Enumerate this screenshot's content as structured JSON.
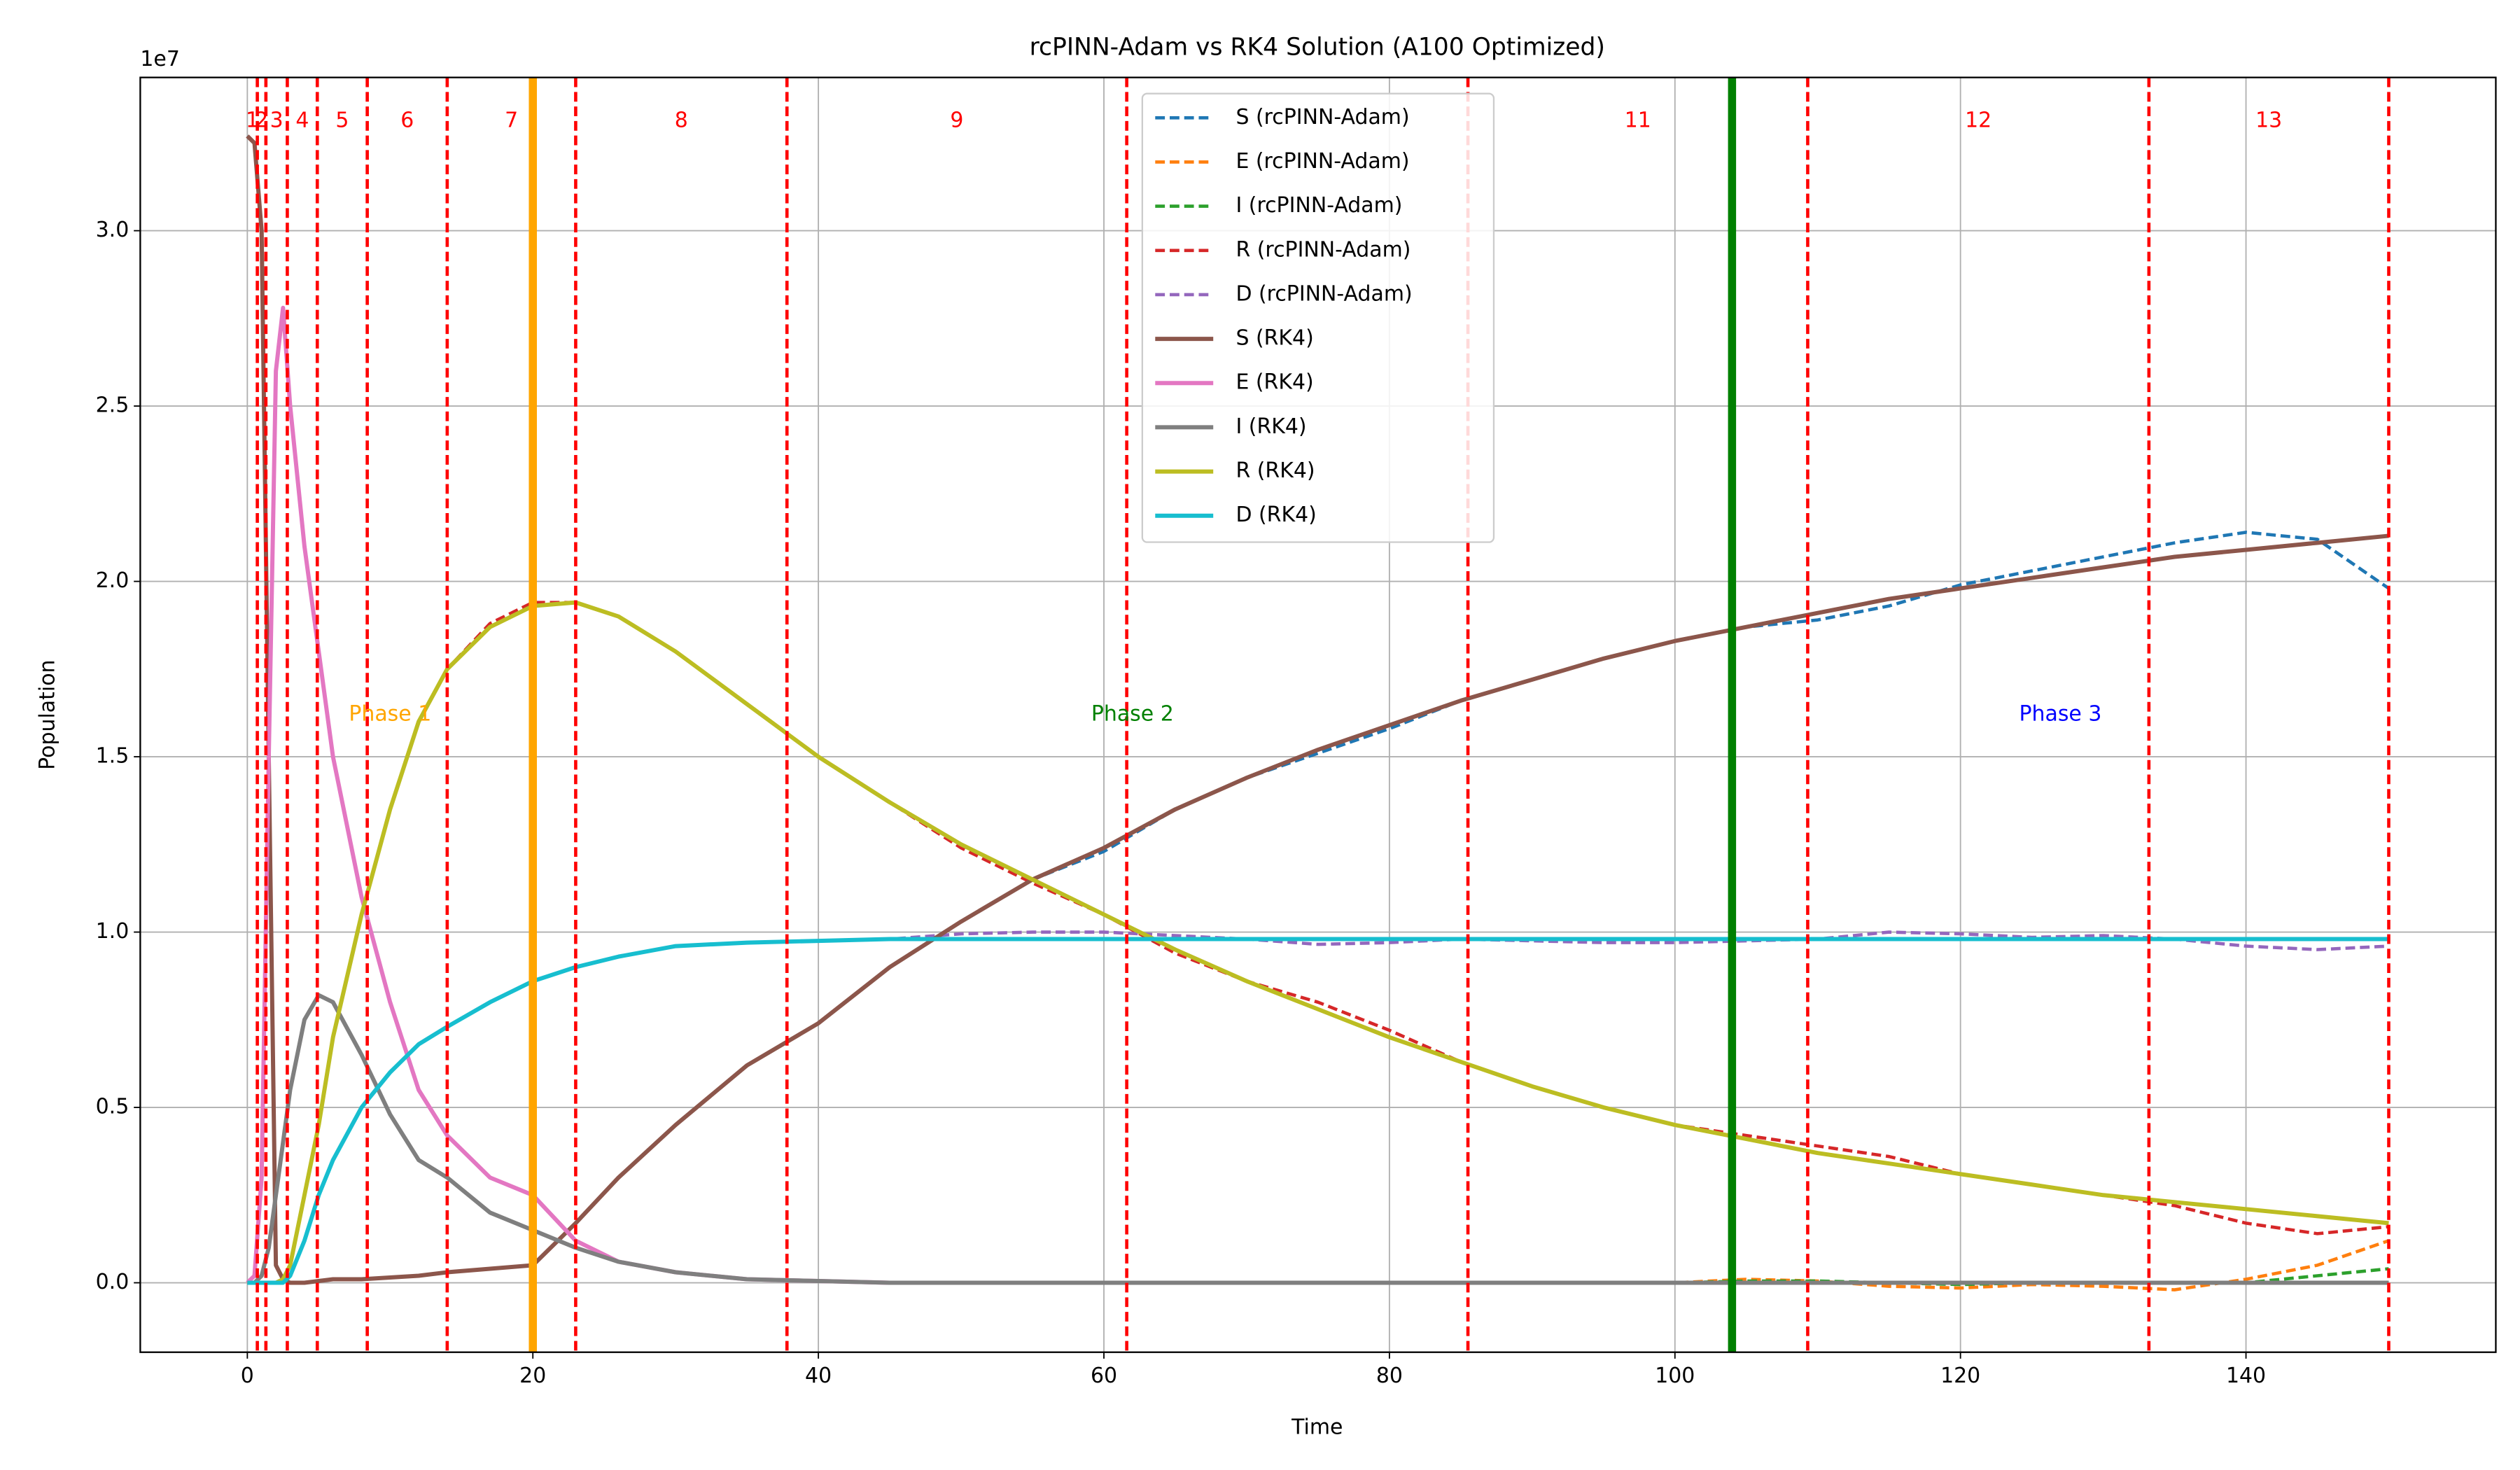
{
  "chart_data": {
    "type": "line",
    "title": "rcPINN-Adam vs RK4 Solution (A100 Optimized)",
    "x_label": "Time",
    "y_label": "Population",
    "y_offset_label": "1e7",
    "xlim": [
      -7.5,
      157.5
    ],
    "ylim": [
      -0.198,
      3.437
    ],
    "xticks": [
      0,
      20,
      40,
      60,
      80,
      100,
      120,
      140
    ],
    "yticks": [
      {
        "value": 0,
        "label": "0.0"
      },
      0.5,
      {
        "value": 1,
        "label": "1.0"
      },
      1.5,
      {
        "value": 2,
        "label": "2.0"
      },
      2.5,
      {
        "value": 3,
        "label": "3.0"
      }
    ],
    "grid": true,
    "legend_position": "upper-center",
    "segment_boundaries": [
      0,
      0.7,
      1.3,
      2.8,
      4.9,
      8.4,
      14.0,
      23.0,
      37.8,
      61.6,
      85.5,
      109.3,
      133.2,
      150
    ],
    "segment_labels": [
      "1",
      "2",
      "3",
      "4",
      "5",
      "6",
      "7",
      "8",
      "9",
      null,
      "11",
      "12",
      "13"
    ],
    "segment_color": "red",
    "phase_boundaries": [
      0,
      20,
      104,
      150
    ],
    "phases": [
      {
        "label": "Phase 1",
        "color": "orange"
      },
      {
        "label": "Phase 2",
        "color": "green"
      },
      {
        "label": "Phase 3",
        "color": "blue"
      }
    ],
    "x": [
      0,
      0.5,
      1,
      1.5,
      2,
      2.5,
      3,
      4,
      5,
      6,
      8,
      10,
      12,
      14,
      17,
      20,
      23,
      26,
      30,
      35,
      40,
      45,
      50,
      55,
      60,
      65,
      70,
      75,
      80,
      85,
      90,
      95,
      100,
      105,
      110,
      115,
      120,
      125,
      130,
      135,
      140,
      145,
      150
    ],
    "series": [
      {
        "name": "S (rcPINN-Adam)",
        "color": "#1f77b4",
        "line_style": "dashed",
        "values": [
          3.27,
          3.25,
          3.0,
          1.5,
          0.05,
          0.01,
          0,
          0,
          0.005,
          0.01,
          0.01,
          0.015,
          0.02,
          0.03,
          0.04,
          0.05,
          0.17,
          0.3,
          0.45,
          0.62,
          0.74,
          0.9,
          1.03,
          1.15,
          1.23,
          1.35,
          1.44,
          1.51,
          1.58,
          1.66,
          1.72,
          1.78,
          1.83,
          1.87,
          1.89,
          1.93,
          1.99,
          2.03,
          2.07,
          2.11,
          2.14,
          2.12,
          1.98
        ]
      },
      {
        "name": "E (rcPINN-Adam)",
        "color": "#ff7f0e",
        "line_style": "dashed",
        "values": [
          0,
          0.02,
          0.3,
          1.5,
          2.6,
          2.78,
          2.5,
          2.1,
          1.8,
          1.5,
          1.1,
          0.8,
          0.55,
          0.42,
          0.3,
          0.25,
          0.12,
          0.06,
          0.03,
          0.01,
          0.005,
          0,
          0,
          0,
          0,
          0,
          0,
          0,
          0,
          0,
          0,
          0,
          0,
          0.01,
          0.005,
          -0.01,
          -0.015,
          -0.005,
          -0.01,
          -0.02,
          0.01,
          0.05,
          0.12
        ]
      },
      {
        "name": "I (rcPINN-Adam)",
        "color": "#2ca02c",
        "line_style": "dashed",
        "values": [
          0,
          0,
          0.02,
          0.1,
          0.25,
          0.4,
          0.55,
          0.75,
          0.82,
          0.8,
          0.65,
          0.48,
          0.35,
          0.3,
          0.2,
          0.15,
          0.1,
          0.06,
          0.03,
          0.01,
          0.005,
          0,
          0,
          0,
          0,
          0,
          0,
          0,
          0,
          0,
          0,
          0,
          0,
          0.005,
          0.005,
          0,
          -0.005,
          0,
          0,
          0,
          0,
          0.02,
          0.04
        ]
      },
      {
        "name": "R (rcPINN-Adam)",
        "color": "#d62728",
        "line_style": "dashed",
        "values": [
          0,
          0,
          0,
          0,
          0,
          0.01,
          0.05,
          0.25,
          0.45,
          0.7,
          1.05,
          1.35,
          1.6,
          1.75,
          1.88,
          1.94,
          1.94,
          1.9,
          1.8,
          1.65,
          1.5,
          1.37,
          1.24,
          1.14,
          1.05,
          0.94,
          0.86,
          0.8,
          0.72,
          0.63,
          0.56,
          0.5,
          0.45,
          0.42,
          0.39,
          0.36,
          0.31,
          0.28,
          0.25,
          0.22,
          0.17,
          0.14,
          0.16
        ]
      },
      {
        "name": "D (rcPINN-Adam)",
        "color": "#9467bd",
        "line_style": "dashed",
        "values": [
          0,
          0,
          0,
          0,
          0,
          0,
          0.02,
          0.12,
          0.25,
          0.35,
          0.5,
          0.6,
          0.68,
          0.73,
          0.8,
          0.86,
          0.9,
          0.93,
          0.96,
          0.97,
          0.975,
          0.98,
          0.995,
          1.0,
          1.0,
          0.99,
          0.98,
          0.965,
          0.97,
          0.98,
          0.975,
          0.97,
          0.97,
          0.975,
          0.98,
          1.0,
          0.995,
          0.985,
          0.99,
          0.98,
          0.96,
          0.95,
          0.96
        ]
      },
      {
        "name": "S (RK4)",
        "color": "#8c564b",
        "line_style": "solid",
        "values": [
          3.27,
          3.25,
          3.0,
          1.5,
          0.05,
          0.01,
          0,
          0,
          0.005,
          0.01,
          0.01,
          0.015,
          0.02,
          0.03,
          0.04,
          0.05,
          0.17,
          0.3,
          0.45,
          0.62,
          0.74,
          0.9,
          1.03,
          1.15,
          1.24,
          1.35,
          1.44,
          1.52,
          1.59,
          1.66,
          1.72,
          1.78,
          1.83,
          1.87,
          1.91,
          1.95,
          1.98,
          2.01,
          2.04,
          2.07,
          2.09,
          2.11,
          2.13
        ]
      },
      {
        "name": "E (RK4)",
        "color": "#e377c2",
        "line_style": "solid",
        "values": [
          0,
          0.02,
          0.3,
          1.5,
          2.6,
          2.78,
          2.5,
          2.1,
          1.8,
          1.5,
          1.1,
          0.8,
          0.55,
          0.42,
          0.3,
          0.25,
          0.12,
          0.06,
          0.03,
          0.01,
          0.005,
          0,
          0,
          0,
          0,
          0,
          0,
          0,
          0,
          0,
          0,
          0,
          0,
          0,
          0,
          0,
          0,
          0,
          0,
          0,
          0,
          0,
          0
        ]
      },
      {
        "name": "I (RK4)",
        "color": "#7f7f7f",
        "line_style": "solid",
        "values": [
          0,
          0,
          0.02,
          0.1,
          0.25,
          0.4,
          0.55,
          0.75,
          0.82,
          0.8,
          0.65,
          0.48,
          0.35,
          0.3,
          0.2,
          0.15,
          0.1,
          0.06,
          0.03,
          0.01,
          0.005,
          0,
          0,
          0,
          0,
          0,
          0,
          0,
          0,
          0,
          0,
          0,
          0,
          0,
          0,
          0,
          0,
          0,
          0,
          0,
          0,
          0,
          0
        ]
      },
      {
        "name": "R (RK4)",
        "color": "#bcbd22",
        "line_style": "solid",
        "values": [
          0,
          0,
          0,
          0,
          0,
          0.01,
          0.05,
          0.25,
          0.45,
          0.7,
          1.05,
          1.35,
          1.6,
          1.75,
          1.87,
          1.93,
          1.94,
          1.9,
          1.8,
          1.65,
          1.5,
          1.37,
          1.25,
          1.15,
          1.05,
          0.95,
          0.86,
          0.78,
          0.7,
          0.63,
          0.56,
          0.5,
          0.45,
          0.41,
          0.37,
          0.34,
          0.31,
          0.28,
          0.25,
          0.23,
          0.21,
          0.19,
          0.17
        ]
      },
      {
        "name": "D (RK4)",
        "color": "#17becf",
        "line_style": "solid",
        "values": [
          0,
          0,
          0,
          0,
          0,
          0,
          0.02,
          0.12,
          0.25,
          0.35,
          0.5,
          0.6,
          0.68,
          0.73,
          0.8,
          0.86,
          0.9,
          0.93,
          0.96,
          0.97,
          0.975,
          0.98,
          0.98,
          0.98,
          0.98,
          0.98,
          0.98,
          0.98,
          0.98,
          0.98,
          0.98,
          0.98,
          0.98,
          0.98,
          0.98,
          0.98,
          0.98,
          0.98,
          0.98,
          0.98,
          0.98,
          0.98,
          0.98
        ]
      }
    ]
  }
}
